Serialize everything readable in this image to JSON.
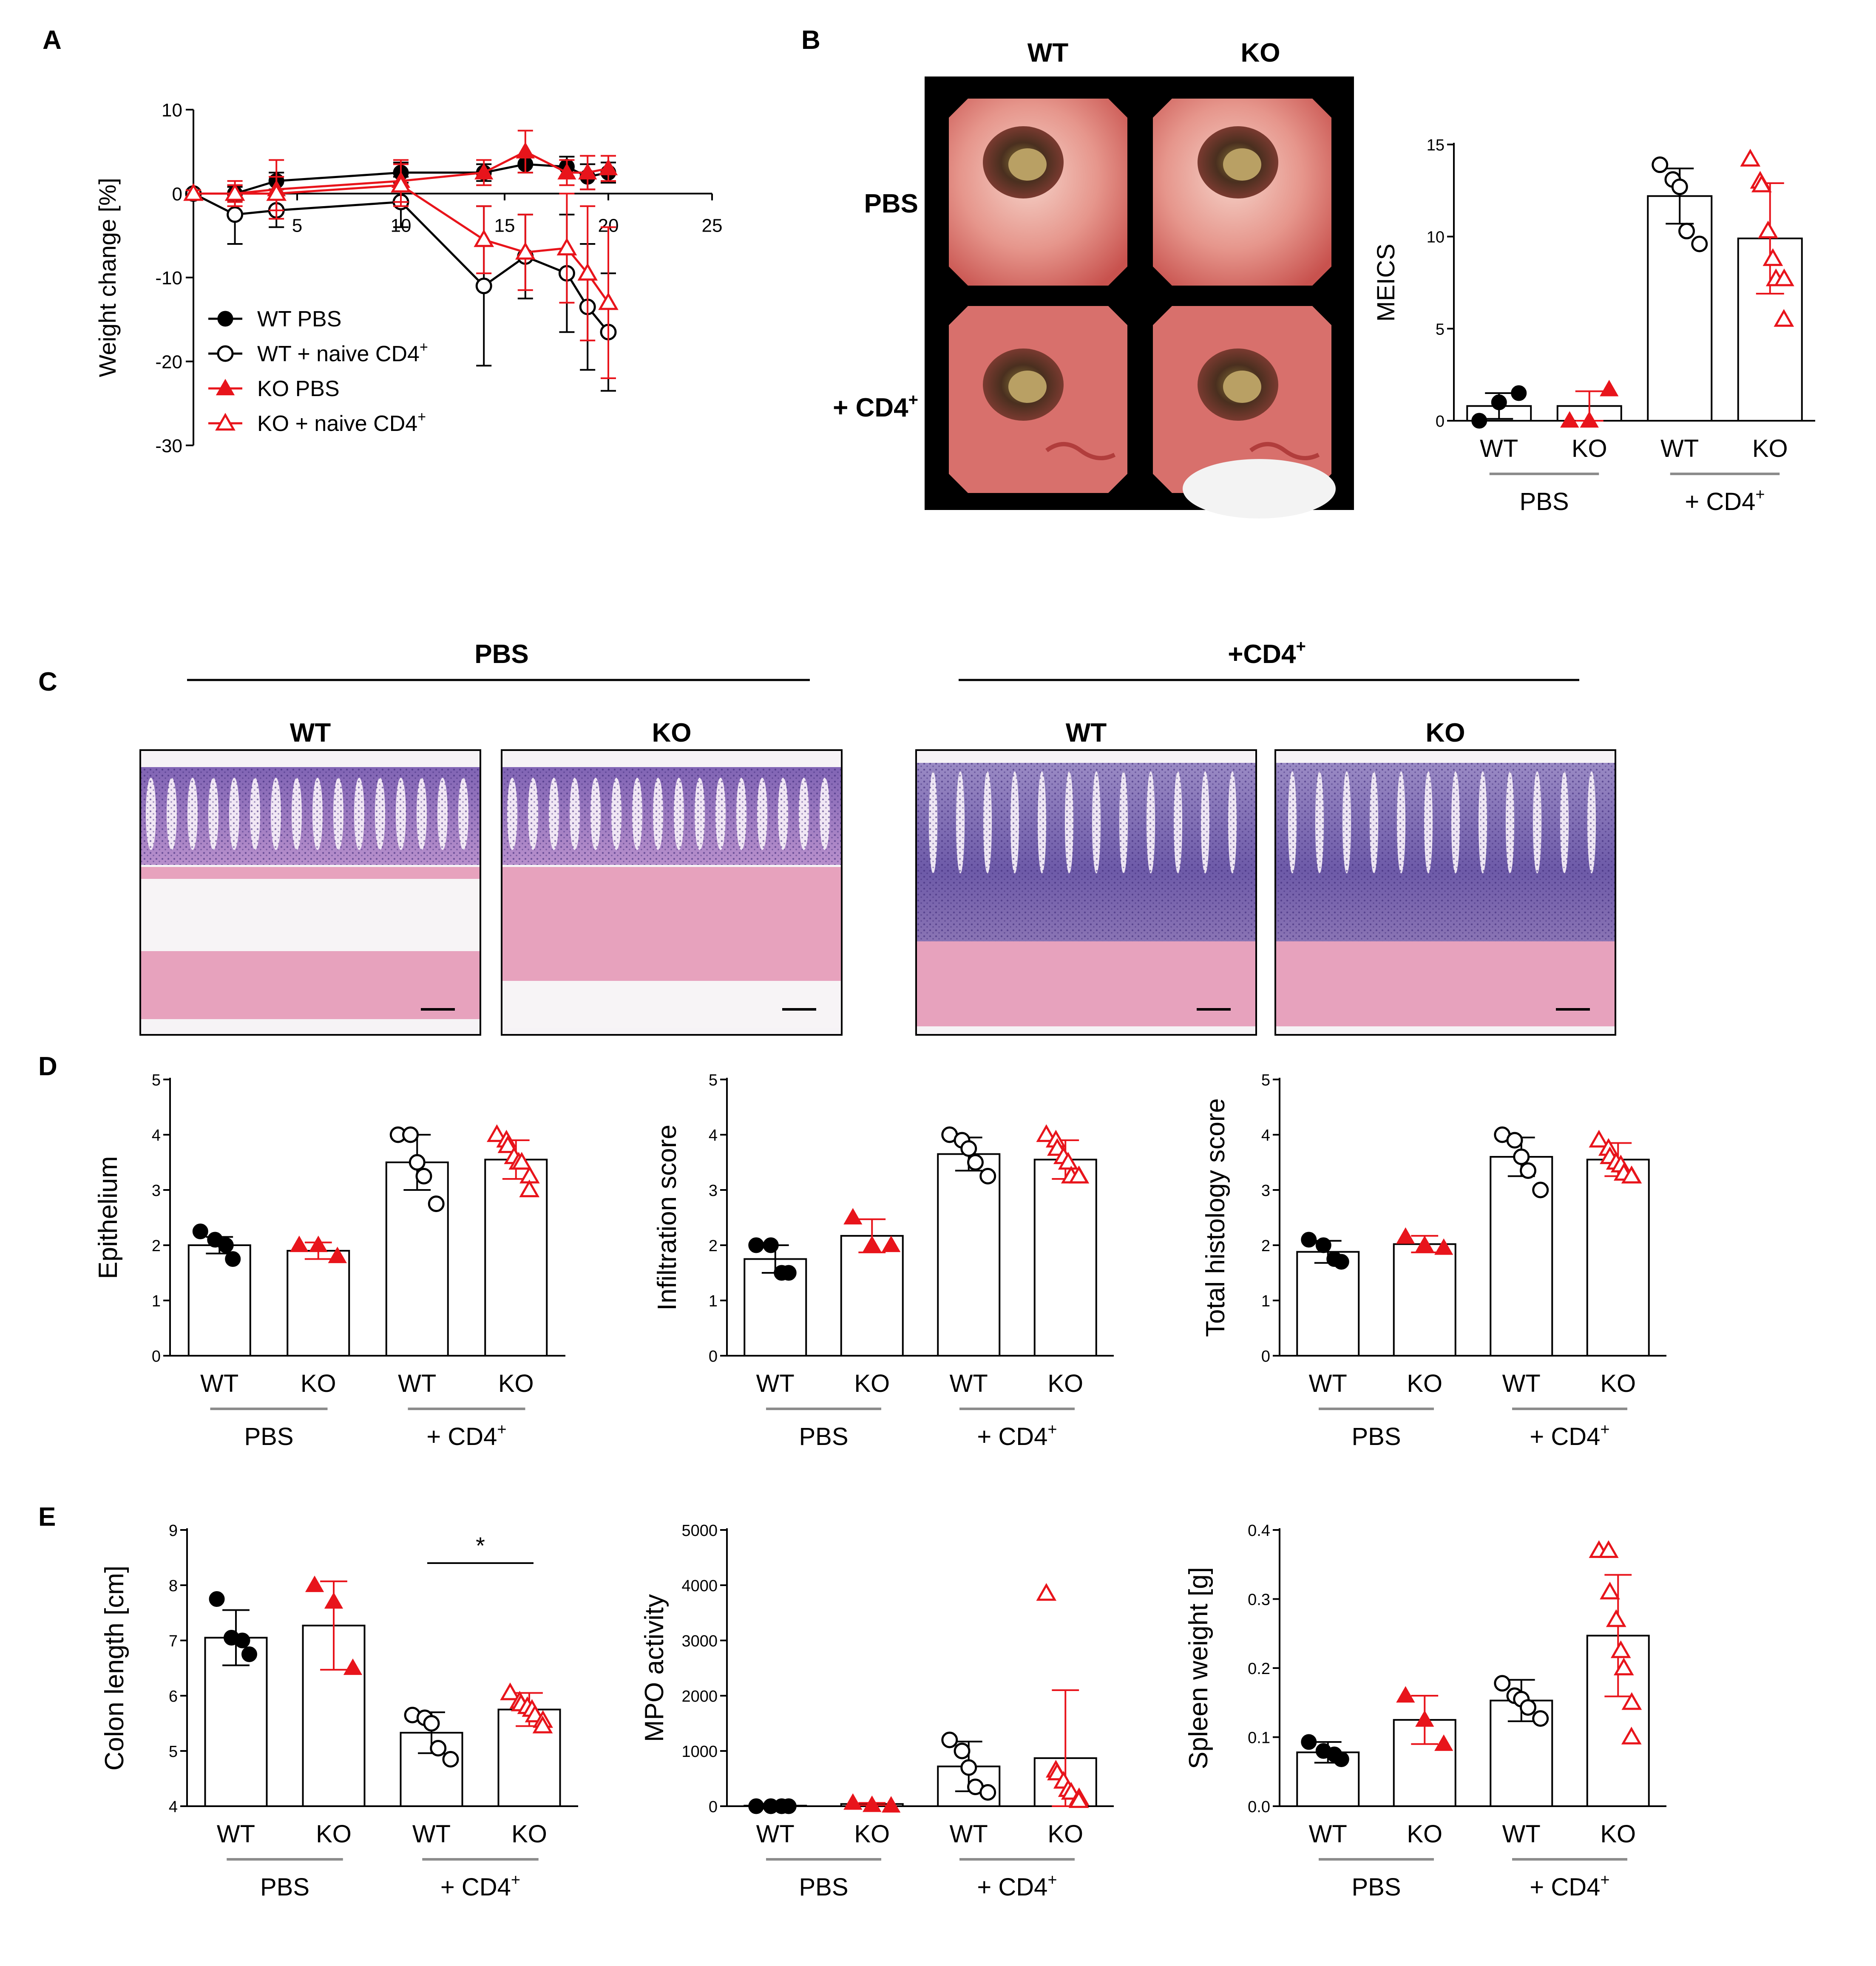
{
  "colors": {
    "wt": "#000000",
    "ko": "#e8141b",
    "group_line": "#8c8c8c",
    "endo_bg": "#000000",
    "endo_tissue": "#e89a92",
    "endo_lumen": "#4a2a1e",
    "he_pink": "#e7a2bd",
    "he_purple": "#6a4aa3",
    "he_bg": "#f6f3f6"
  },
  "panels": {
    "A": "A",
    "B": "B",
    "C": "C",
    "D": "D",
    "E": "E"
  },
  "group_labels": {
    "wt": "WT",
    "ko": "KO",
    "pbs": "PBS",
    "cd4_main": "+ CD4",
    "cd4_sup": "+",
    "cd4_c_main": "+CD4",
    "cd4_c_sup": "+"
  },
  "endoscopy": {
    "col_wt": "WT",
    "col_ko": "KO",
    "row_pbs": "PBS",
    "row_cd4_main": "+ CD4",
    "row_cd4_sup": "+"
  },
  "histology": {
    "header_pbs": "PBS",
    "header_cd4_main": "+CD4",
    "header_cd4_sup": "+",
    "labels": [
      "WT",
      "KO",
      "WT",
      "KO"
    ]
  },
  "chart_data": [
    {
      "id": "A",
      "type": "line",
      "ylabel": "Weight change [%]",
      "xlim": [
        0,
        25
      ],
      "ylim": [
        -30,
        10
      ],
      "xticks": [
        0,
        5,
        10,
        15,
        20,
        25
      ],
      "xtick_labels": [
        "5",
        "10",
        "15",
        "20",
        "25"
      ],
      "yticks": [
        10,
        0,
        -10,
        -20,
        -30
      ],
      "ytick_labels": [
        "10",
        "0",
        "-10",
        "-20",
        "-30"
      ],
      "legend": [
        {
          "label": "WT PBS",
          "marker": "circle",
          "filled": true,
          "color": "#000000"
        },
        {
          "label_main": "WT + naive CD4",
          "label_sup": "+",
          "marker": "circle",
          "filled": false,
          "color": "#000000"
        },
        {
          "label": "KO PBS",
          "marker": "triangle",
          "filled": true,
          "color": "#e8141b"
        },
        {
          "label_main": "KO + naive CD4",
          "label_sup": "+",
          "marker": "triangle",
          "filled": false,
          "color": "#e8141b"
        }
      ],
      "series": [
        {
          "name": "WT PBS",
          "color": "#000000",
          "marker": "circle",
          "filled": true,
          "x": [
            0,
            2,
            4,
            10,
            14,
            16,
            18,
            19,
            20
          ],
          "y": [
            0,
            0,
            1.5,
            2.5,
            2.5,
            3.5,
            3.2,
            2,
            2.5
          ],
          "err": [
            0.4,
            0.8,
            1.0,
            1.2,
            1.0,
            1.0,
            1.2,
            1.5,
            1.2
          ]
        },
        {
          "name": "WT + naive CD4+",
          "color": "#000000",
          "marker": "circle",
          "filled": false,
          "x": [
            0,
            2,
            4,
            10,
            14,
            16,
            18,
            19,
            20
          ],
          "y": [
            0,
            -2.5,
            -2,
            -1,
            -11,
            -7.5,
            -9.5,
            -13.5,
            -16.5
          ],
          "err": [
            0.4,
            3.5,
            2.0,
            3.0,
            9.5,
            5.0,
            7.0,
            7.5,
            7.0
          ]
        },
        {
          "name": "KO PBS",
          "color": "#e8141b",
          "marker": "triangle",
          "filled": true,
          "x": [
            0,
            2,
            4,
            10,
            14,
            16,
            18,
            19,
            20
          ],
          "y": [
            0,
            0,
            0.5,
            1.5,
            2.5,
            5,
            2.5,
            2.5,
            3
          ],
          "err": [
            0.4,
            1.0,
            3.5,
            2.5,
            1.5,
            2.5,
            1.5,
            2.0,
            1.5
          ]
        },
        {
          "name": "KO + naive CD4+",
          "color": "#e8141b",
          "marker": "triangle",
          "filled": false,
          "x": [
            0,
            2,
            4,
            10,
            14,
            16,
            18,
            19,
            20
          ],
          "y": [
            0,
            0,
            0,
            1,
            -5.5,
            -7,
            -6.5,
            -9.5,
            -13
          ],
          "err": [
            0.4,
            1.5,
            2.0,
            2.5,
            4.0,
            4.5,
            6.5,
            8.0,
            9.0
          ]
        }
      ]
    },
    {
      "id": "B",
      "type": "bar",
      "ylabel": "MEICS",
      "ylim": [
        0,
        15
      ],
      "yticks": [
        0,
        5,
        10,
        15
      ],
      "ytick_labels": [
        "0",
        "5",
        "10",
        "15"
      ],
      "bars": [
        {
          "label": "WT",
          "color": "#000000",
          "marker": "circle",
          "filled": true,
          "mean": 0.8,
          "sd": 0.7,
          "points": [
            0,
            1,
            1.5
          ]
        },
        {
          "label": "KO",
          "color": "#e8141b",
          "marker": "triangle",
          "filled": true,
          "mean": 0.8,
          "sd": 0.8,
          "points": [
            0,
            0,
            1.7
          ]
        },
        {
          "label": "WT",
          "color": "#000000",
          "marker": "circle",
          "filled": false,
          "mean": 12.2,
          "sd": 1.5,
          "points": [
            13.9,
            13.1,
            12.7,
            10.3,
            9.6
          ]
        },
        {
          "label": "KO",
          "color": "#e8141b",
          "marker": "triangle",
          "filled": false,
          "mean": 9.9,
          "sd": 3.0,
          "points": [
            14.2,
            13.0,
            12.8,
            10.3,
            8.8,
            7.7,
            7.7,
            5.5
          ]
        }
      ]
    },
    {
      "id": "D1",
      "type": "bar",
      "ylabel": "Epithelium",
      "ylim": [
        0,
        5
      ],
      "yticks": [
        0,
        1,
        2,
        3,
        4,
        5
      ],
      "ytick_labels": [
        "0",
        "1",
        "2",
        "3",
        "4",
        "5"
      ],
      "bars": [
        {
          "label": "WT",
          "color": "#000000",
          "marker": "circle",
          "filled": true,
          "mean": 2.0,
          "sd": 0.15,
          "points": [
            2.25,
            2.1,
            2.0,
            1.75
          ]
        },
        {
          "label": "KO",
          "color": "#e8141b",
          "marker": "triangle",
          "filled": true,
          "mean": 1.9,
          "sd": 0.15,
          "points": [
            2.0,
            2.0,
            1.8
          ]
        },
        {
          "label": "WT",
          "color": "#000000",
          "marker": "circle",
          "filled": false,
          "mean": 3.5,
          "sd": 0.5,
          "points": [
            4.0,
            4.0,
            3.5,
            3.25,
            2.75
          ]
        },
        {
          "label": "KO",
          "color": "#e8141b",
          "marker": "triangle",
          "filled": false,
          "mean": 3.55,
          "sd": 0.35,
          "points": [
            4.0,
            3.9,
            3.8,
            3.6,
            3.5,
            3.5,
            3.25,
            3.0
          ]
        }
      ]
    },
    {
      "id": "D2",
      "type": "bar",
      "ylabel": "Infiltration score",
      "ylim": [
        0,
        5
      ],
      "yticks": [
        0,
        1,
        2,
        3,
        4,
        5
      ],
      "ytick_labels": [
        "0",
        "1",
        "2",
        "3",
        "4",
        "5"
      ],
      "bars": [
        {
          "label": "WT",
          "color": "#000000",
          "marker": "circle",
          "filled": true,
          "mean": 1.75,
          "sd": 0.25,
          "points": [
            2.0,
            2.0,
            1.5,
            1.5
          ]
        },
        {
          "label": "KO",
          "color": "#e8141b",
          "marker": "triangle",
          "filled": true,
          "mean": 2.17,
          "sd": 0.3,
          "points": [
            2.5,
            2.0,
            2.0
          ]
        },
        {
          "label": "WT",
          "color": "#000000",
          "marker": "circle",
          "filled": false,
          "mean": 3.65,
          "sd": 0.3,
          "points": [
            4.0,
            3.9,
            3.75,
            3.5,
            3.25
          ]
        },
        {
          "label": "KO",
          "color": "#e8141b",
          "marker": "triangle",
          "filled": false,
          "mean": 3.55,
          "sd": 0.35,
          "points": [
            4.0,
            3.9,
            3.75,
            3.6,
            3.5,
            3.25,
            3.25,
            3.25
          ]
        }
      ]
    },
    {
      "id": "D3",
      "type": "bar",
      "ylabel": "Total histology score",
      "ylim": [
        0,
        5
      ],
      "yticks": [
        0,
        1,
        2,
        3,
        4,
        5
      ],
      "ytick_labels": [
        "0",
        "1",
        "2",
        "3",
        "4",
        "5"
      ],
      "bars": [
        {
          "label": "WT",
          "color": "#000000",
          "marker": "circle",
          "filled": true,
          "mean": 1.88,
          "sd": 0.2,
          "points": [
            2.1,
            2.0,
            1.75,
            1.7
          ]
        },
        {
          "label": "KO",
          "color": "#e8141b",
          "marker": "triangle",
          "filled": true,
          "mean": 2.02,
          "sd": 0.15,
          "points": [
            2.15,
            2.0,
            1.95
          ]
        },
        {
          "label": "WT",
          "color": "#000000",
          "marker": "circle",
          "filled": false,
          "mean": 3.6,
          "sd": 0.35,
          "points": [
            4.0,
            3.9,
            3.6,
            3.35,
            3.0
          ]
        },
        {
          "label": "KO",
          "color": "#e8141b",
          "marker": "triangle",
          "filled": false,
          "mean": 3.55,
          "sd": 0.3,
          "points": [
            3.9,
            3.75,
            3.6,
            3.5,
            3.45,
            3.3,
            3.25,
            3.25
          ]
        }
      ]
    },
    {
      "id": "E1",
      "type": "bar",
      "ylabel": "Colon length [cm]",
      "ylim": [
        4,
        9
      ],
      "yticks": [
        4,
        5,
        6,
        7,
        8,
        9
      ],
      "ytick_labels": [
        "4",
        "5",
        "6",
        "7",
        "8",
        "9"
      ],
      "significance": {
        "label": "*",
        "from_bar": 2,
        "to_bar": 3,
        "y": 8.4
      },
      "bars": [
        {
          "label": "WT",
          "color": "#000000",
          "marker": "circle",
          "filled": true,
          "mean": 7.05,
          "sd": 0.5,
          "points": [
            7.75,
            7.05,
            7.0,
            6.75
          ]
        },
        {
          "label": "KO",
          "color": "#e8141b",
          "marker": "triangle",
          "filled": true,
          "mean": 7.27,
          "sd": 0.8,
          "points": [
            8.0,
            7.7,
            6.5
          ]
        },
        {
          "label": "WT",
          "color": "#000000",
          "marker": "circle",
          "filled": false,
          "mean": 5.33,
          "sd": 0.37,
          "points": [
            5.65,
            5.6,
            5.5,
            5.05,
            4.85
          ]
        },
        {
          "label": "KO",
          "color": "#e8141b",
          "marker": "triangle",
          "filled": false,
          "mean": 5.75,
          "sd": 0.3,
          "points": [
            6.05,
            5.9,
            5.85,
            5.8,
            5.75,
            5.65,
            5.55,
            5.45
          ]
        }
      ]
    },
    {
      "id": "E2",
      "type": "bar",
      "ylabel": "MPO activity",
      "ylim": [
        0,
        5000
      ],
      "yticks": [
        0,
        1000,
        2000,
        3000,
        4000,
        5000
      ],
      "ytick_labels": [
        "0",
        "1000",
        "2000",
        "3000",
        "4000",
        "5000"
      ],
      "bars": [
        {
          "label": "WT",
          "color": "#000000",
          "marker": "circle",
          "filled": true,
          "mean": 10,
          "sd": 0,
          "points": [
            0,
            0,
            0,
            0
          ]
        },
        {
          "label": "KO",
          "color": "#e8141b",
          "marker": "triangle",
          "filled": true,
          "mean": 40,
          "sd": 20,
          "points": [
            60,
            20,
            10
          ]
        },
        {
          "label": "WT",
          "color": "#000000",
          "marker": "circle",
          "filled": false,
          "mean": 720,
          "sd": 450,
          "points": [
            1200,
            1000,
            700,
            350,
            250
          ]
        },
        {
          "label": "KO",
          "color": "#e8141b",
          "marker": "triangle",
          "filled": false,
          "mean": 870,
          "sd": 1230,
          "points": [
            3850,
            650,
            600,
            450,
            300,
            250,
            150,
            100
          ]
        }
      ]
    },
    {
      "id": "E3",
      "type": "bar",
      "ylabel": "Spleen weight [g]",
      "ylim": [
        0,
        0.4
      ],
      "yticks": [
        0,
        0.1,
        0.2,
        0.3,
        0.4
      ],
      "ytick_labels": [
        "0.0",
        "0.1",
        "0.2",
        "0.3",
        "0.4"
      ],
      "bars": [
        {
          "label": "WT",
          "color": "#000000",
          "marker": "circle",
          "filled": true,
          "mean": 0.078,
          "sd": 0.015,
          "points": [
            0.093,
            0.08,
            0.075,
            0.068
          ]
        },
        {
          "label": "KO",
          "color": "#e8141b",
          "marker": "triangle",
          "filled": true,
          "mean": 0.125,
          "sd": 0.035,
          "points": [
            0.16,
            0.125,
            0.09
          ]
        },
        {
          "label": "WT",
          "color": "#000000",
          "marker": "circle",
          "filled": false,
          "mean": 0.153,
          "sd": 0.03,
          "points": [
            0.178,
            0.16,
            0.155,
            0.143,
            0.127
          ]
        },
        {
          "label": "KO",
          "color": "#e8141b",
          "marker": "triangle",
          "filled": false,
          "mean": 0.247,
          "sd": 0.088,
          "points": [
            0.37,
            0.37,
            0.31,
            0.27,
            0.225,
            0.2,
            0.15,
            0.1
          ]
        }
      ]
    }
  ]
}
